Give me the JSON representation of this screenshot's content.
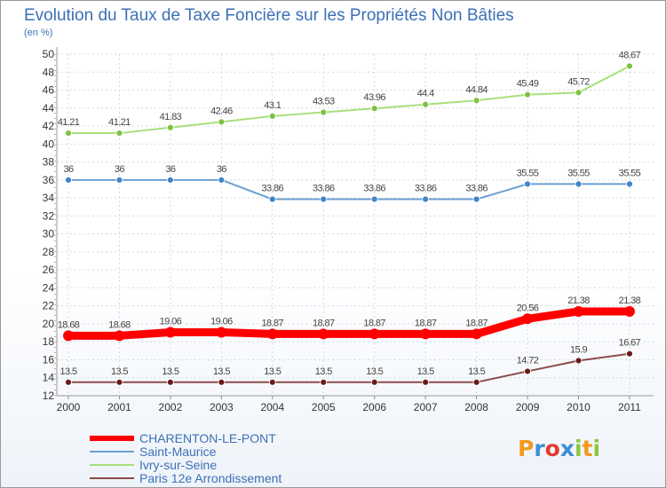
{
  "title": "Evolution du Taux de Taxe Foncière sur les Propriétés Non Bâties",
  "y_unit": "(en %)",
  "logo": {
    "text": "Proxiti",
    "colors": [
      "#f39a1e",
      "#3b8fd3",
      "#e53c2e",
      "#3b8fd3",
      "#8dc63f",
      "#f39a1e",
      "#8dc63f"
    ]
  },
  "chart_data": {
    "type": "line",
    "title": "Evolution du Taux de Taxe Foncière sur les Propriétés Non Bâties",
    "ylabel": "(en %)",
    "xlabel": "",
    "x": [
      "2000",
      "2001",
      "2002",
      "2003",
      "2004",
      "2005",
      "2006",
      "2007",
      "2008",
      "2009",
      "2010",
      "2011"
    ],
    "ylim": [
      12,
      50
    ],
    "yticks": [
      12,
      14,
      16,
      18,
      20,
      22,
      24,
      26,
      28,
      30,
      32,
      34,
      36,
      38,
      40,
      42,
      44,
      46,
      48,
      50
    ],
    "grid": true,
    "legend_position": "bottom-left",
    "series": [
      {
        "name": "CHARENTON-LE-PONT",
        "color": "#ff0000",
        "marker_color": "#ff0000",
        "values": [
          18.68,
          18.68,
          19.06,
          19.06,
          18.87,
          18.87,
          18.87,
          18.87,
          18.87,
          20.56,
          21.38,
          21.38
        ],
        "labels": [
          "18.68",
          "18.68",
          "19.06",
          "19.06",
          "18.87",
          "18.87",
          "18.87",
          "18.87",
          "18.87",
          "20.56",
          "21.38",
          "21.38"
        ]
      },
      {
        "name": "Saint-Maurice",
        "color": "#6b9fd0",
        "marker_color": "#3f86c8",
        "values": [
          36,
          36,
          36,
          36,
          33.86,
          33.86,
          33.86,
          33.86,
          33.86,
          35.55,
          35.55,
          35.55
        ],
        "labels": [
          "36",
          "36",
          "36",
          "36",
          "33.86",
          "33.86",
          "33.86",
          "33.86",
          "33.86",
          "35.55",
          "35.55",
          "35.55"
        ]
      },
      {
        "name": "Ivry-sur-Seine",
        "color": "#a6e07a",
        "marker_color": "#7cc242",
        "values": [
          41.21,
          41.21,
          41.83,
          42.46,
          43.1,
          43.53,
          43.96,
          44.4,
          44.84,
          45.49,
          45.72,
          48.67
        ],
        "labels": [
          "41.21",
          "41.21",
          "41.83",
          "42.46",
          "43.1",
          "43.53",
          "43.96",
          "44.4",
          "44.84",
          "45.49",
          "45.72",
          "48.67"
        ]
      },
      {
        "name": "Paris 12e  Arrondissement",
        "color": "#8b4a4a",
        "marker_color": "#6b1a1a",
        "values": [
          13.5,
          13.5,
          13.5,
          13.5,
          13.5,
          13.5,
          13.5,
          13.5,
          13.5,
          14.72,
          15.9,
          16.67
        ],
        "labels": [
          "13.5",
          "13.5",
          "13.5",
          "13.5",
          "13.5",
          "13.5",
          "13.5",
          "13.5",
          "13.5",
          "14.72",
          "15.9",
          "16.67"
        ]
      }
    ]
  }
}
